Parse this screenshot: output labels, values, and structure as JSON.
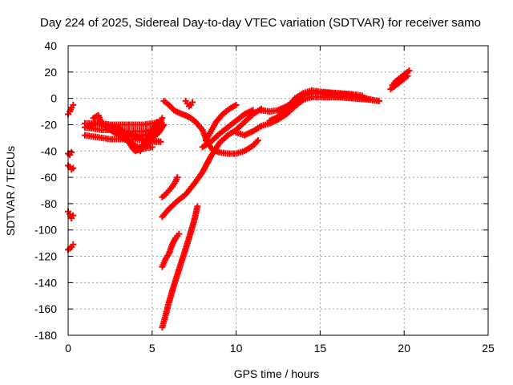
{
  "chart_data": {
    "type": "scatter",
    "title": "Day 224 of 2025, Sidereal Day-to-day VTEC variation (SDTVAR) for receiver samo",
    "xlabel": "GPS time / hours",
    "ylabel": "SDTVAR / TECUs",
    "xlim": [
      0,
      25
    ],
    "ylim": [
      -180,
      40
    ],
    "xticks": [
      0,
      5,
      10,
      15,
      20,
      25
    ],
    "yticks": [
      40,
      20,
      0,
      -20,
      -40,
      -60,
      -80,
      -100,
      -120,
      -140,
      -160,
      -180
    ],
    "grid": true,
    "marker": "plus",
    "color": "#ff0000",
    "series": [
      {
        "points": [
          [
            0.0,
            -12
          ],
          [
            0.1,
            -10
          ],
          [
            0.2,
            -7
          ],
          [
            0.3,
            -5
          ]
        ]
      },
      {
        "points": [
          [
            0.0,
            -42
          ],
          [
            0.1,
            -43
          ],
          [
            0.2,
            -41
          ]
        ]
      },
      {
        "points": [
          [
            0.0,
            -51
          ],
          [
            0.1,
            -52
          ],
          [
            0.2,
            -54
          ],
          [
            0.3,
            -53
          ]
        ]
      },
      {
        "points": [
          [
            0.0,
            -86
          ],
          [
            0.1,
            -88
          ],
          [
            0.2,
            -91
          ],
          [
            0.3,
            -89
          ]
        ]
      },
      {
        "points": [
          [
            0.0,
            -115
          ],
          [
            0.1,
            -114
          ],
          [
            0.2,
            -113
          ],
          [
            0.3,
            -111
          ]
        ]
      },
      {
        "points": [
          [
            1.0,
            -19
          ],
          [
            1.5,
            -19
          ],
          [
            2.0,
            -19
          ],
          [
            2.5,
            -20
          ],
          [
            3.0,
            -20
          ],
          [
            3.5,
            -20
          ],
          [
            4.0,
            -20
          ],
          [
            4.5,
            -20
          ],
          [
            5.0,
            -19
          ],
          [
            5.5,
            -18
          ]
        ]
      },
      {
        "points": [
          [
            1.0,
            -22
          ],
          [
            1.5,
            -23
          ],
          [
            2.0,
            -24
          ],
          [
            2.5,
            -24
          ],
          [
            3.0,
            -25
          ],
          [
            3.5,
            -25
          ],
          [
            4.0,
            -25
          ],
          [
            4.5,
            -25
          ],
          [
            5.0,
            -24
          ],
          [
            5.5,
            -23
          ]
        ]
      },
      {
        "points": [
          [
            1.0,
            -28
          ],
          [
            1.5,
            -29
          ],
          [
            2.0,
            -30
          ],
          [
            2.5,
            -31
          ],
          [
            3.0,
            -31
          ],
          [
            3.5,
            -31
          ],
          [
            4.0,
            -31
          ],
          [
            4.5,
            -32
          ],
          [
            5.0,
            -32
          ],
          [
            5.5,
            -33
          ]
        ]
      },
      {
        "points": [
          [
            1.2,
            -21
          ],
          [
            1.6,
            -19
          ],
          [
            2.0,
            -20
          ],
          [
            2.5,
            -22
          ],
          [
            3.0,
            -24
          ],
          [
            3.5,
            -26
          ],
          [
            4.0,
            -28
          ],
          [
            4.5,
            -31
          ],
          [
            5.0,
            -33
          ],
          [
            5.5,
            -33
          ]
        ]
      },
      {
        "points": [
          [
            1.5,
            -15
          ],
          [
            1.8,
            -13
          ],
          [
            2.0,
            -19
          ],
          [
            2.5,
            -24
          ],
          [
            3.0,
            -28
          ],
          [
            3.5,
            -32
          ],
          [
            4.0,
            -36
          ],
          [
            4.5,
            -38
          ],
          [
            5.0,
            -37
          ]
        ]
      },
      {
        "points": [
          [
            2.0,
            -20
          ],
          [
            2.5,
            -20
          ],
          [
            3.0,
            -22
          ],
          [
            3.3,
            -26
          ],
          [
            3.6,
            -33
          ],
          [
            3.9,
            -39
          ],
          [
            4.2,
            -39
          ],
          [
            4.5,
            -35
          ],
          [
            5.0,
            -28
          ],
          [
            5.5,
            -20
          ]
        ]
      },
      {
        "points": [
          [
            3.0,
            -27
          ],
          [
            3.5,
            -32
          ],
          [
            4.0,
            -37
          ],
          [
            4.3,
            -40
          ],
          [
            4.6,
            -33
          ],
          [
            5.0,
            -24
          ],
          [
            5.3,
            -18
          ]
        ]
      },
      {
        "points": [
          [
            3.5,
            -28
          ],
          [
            4.0,
            -30
          ],
          [
            4.5,
            -28
          ],
          [
            4.9,
            -27
          ],
          [
            5.3,
            -23
          ],
          [
            5.6,
            -15
          ]
        ]
      },
      {
        "points": [
          [
            4.0,
            -40
          ],
          [
            4.5,
            -37
          ],
          [
            4.8,
            -34
          ],
          [
            5.0,
            -30
          ],
          [
            5.4,
            -26
          ],
          [
            5.7,
            -20
          ]
        ]
      },
      {
        "points": [
          [
            5.6,
            -75
          ],
          [
            5.8,
            -73
          ],
          [
            6.0,
            -70
          ],
          [
            6.2,
            -67
          ],
          [
            6.4,
            -63
          ],
          [
            6.5,
            -60
          ]
        ]
      },
      {
        "points": [
          [
            5.6,
            -128
          ],
          [
            5.8,
            -122
          ],
          [
            6.0,
            -118
          ],
          [
            6.2,
            -111
          ],
          [
            6.4,
            -106
          ],
          [
            6.6,
            -103
          ]
        ]
      },
      {
        "points": [
          [
            5.6,
            -174
          ],
          [
            5.8,
            -165
          ],
          [
            6.0,
            -155
          ],
          [
            6.3,
            -142
          ],
          [
            6.6,
            -130
          ],
          [
            6.9,
            -118
          ],
          [
            7.2,
            -106
          ],
          [
            7.5,
            -93
          ],
          [
            7.7,
            -82
          ]
        ]
      },
      {
        "points": [
          [
            5.6,
            -90
          ],
          [
            6.0,
            -84
          ],
          [
            6.5,
            -78
          ],
          [
            7.0,
            -73
          ],
          [
            7.5,
            -65
          ],
          [
            8.0,
            -56
          ],
          [
            8.5,
            -44
          ],
          [
            9.0,
            -34
          ],
          [
            9.5,
            -28
          ],
          [
            10.0,
            -24
          ],
          [
            10.5,
            -18
          ],
          [
            11.0,
            -12
          ],
          [
            11.5,
            -8
          ]
        ]
      },
      {
        "points": [
          [
            5.7,
            -2
          ],
          [
            6.0,
            -5
          ],
          [
            6.3,
            -9
          ],
          [
            6.6,
            -11
          ],
          [
            7.0,
            -13
          ],
          [
            7.3,
            -15
          ],
          [
            7.6,
            -18
          ],
          [
            8.0,
            -24
          ],
          [
            8.3,
            -34
          ],
          [
            8.6,
            -39
          ],
          [
            9.0,
            -41
          ],
          [
            9.5,
            -42
          ],
          [
            10.0,
            -42
          ],
          [
            10.5,
            -40
          ],
          [
            11.0,
            -36
          ],
          [
            11.3,
            -32
          ]
        ]
      },
      {
        "points": [
          [
            7.0,
            -2
          ],
          [
            7.1,
            -4
          ],
          [
            7.2,
            -6
          ],
          [
            7.3,
            -5
          ],
          [
            7.4,
            -3
          ]
        ]
      },
      {
        "points": [
          [
            8.0,
            -37
          ],
          [
            8.5,
            -33
          ],
          [
            9.0,
            -27
          ],
          [
            9.5,
            -22
          ],
          [
            10.0,
            -17
          ],
          [
            10.5,
            -12
          ],
          [
            11.0,
            -9
          ]
        ]
      },
      {
        "points": [
          [
            8.2,
            -32
          ],
          [
            8.5,
            -25
          ],
          [
            8.8,
            -18
          ],
          [
            9.2,
            -12
          ],
          [
            9.6,
            -8
          ],
          [
            10.0,
            -5
          ]
        ]
      },
      {
        "points": [
          [
            10.0,
            -26
          ],
          [
            10.5,
            -28
          ],
          [
            11.0,
            -25
          ],
          [
            11.5,
            -21
          ],
          [
            12.0,
            -19
          ],
          [
            12.5,
            -16
          ],
          [
            13.0,
            -12
          ],
          [
            13.5,
            -6
          ],
          [
            14.0,
            -1
          ],
          [
            14.5,
            1
          ],
          [
            15.0,
            1
          ],
          [
            16.0,
            1
          ],
          [
            17.0,
            0
          ],
          [
            18.0,
            -1
          ],
          [
            18.5,
            -2
          ]
        ]
      },
      {
        "points": [
          [
            11.5,
            -9
          ],
          [
            12.0,
            -10
          ],
          [
            12.5,
            -9
          ],
          [
            13.0,
            -6
          ],
          [
            13.5,
            -2
          ],
          [
            14.0,
            2
          ],
          [
            14.5,
            4
          ],
          [
            15.0,
            4
          ],
          [
            15.5,
            4
          ],
          [
            16.0,
            3
          ],
          [
            16.5,
            3
          ],
          [
            17.0,
            2
          ],
          [
            17.5,
            1
          ],
          [
            18.0,
            -1
          ],
          [
            18.5,
            -2
          ]
        ]
      },
      {
        "points": [
          [
            12.0,
            -17
          ],
          [
            12.5,
            -14
          ],
          [
            13.0,
            -8
          ],
          [
            13.5,
            0
          ],
          [
            14.0,
            4
          ],
          [
            14.5,
            6
          ],
          [
            15.0,
            5
          ],
          [
            16.0,
            4
          ],
          [
            17.0,
            3
          ],
          [
            17.5,
            2
          ]
        ]
      },
      {
        "points": [
          [
            19.2,
            7
          ],
          [
            19.4,
            9
          ],
          [
            19.6,
            11
          ],
          [
            19.8,
            13
          ],
          [
            20.0,
            15
          ],
          [
            20.2,
            17
          ]
        ]
      },
      {
        "points": [
          [
            19.3,
            10
          ],
          [
            19.5,
            13
          ],
          [
            19.7,
            15
          ],
          [
            19.9,
            17
          ],
          [
            20.1,
            19
          ],
          [
            20.3,
            21
          ]
        ]
      }
    ]
  }
}
